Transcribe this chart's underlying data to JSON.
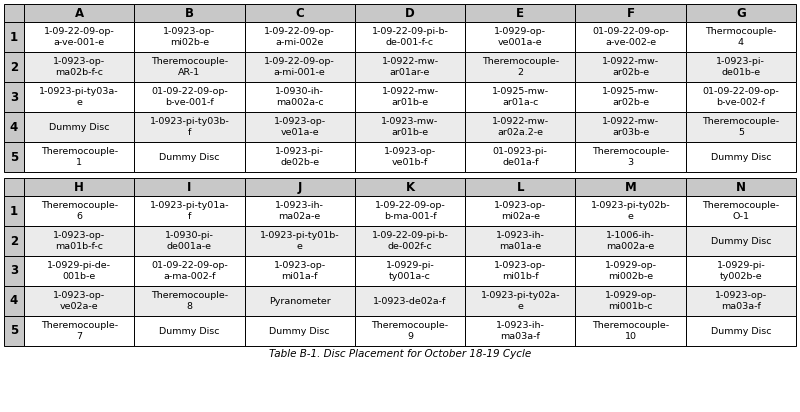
{
  "title": "Table B-1. Disc Placement for October 18-19 Cycle",
  "table1_cols": [
    "",
    "A",
    "B",
    "C",
    "D",
    "E",
    "F",
    "G"
  ],
  "table1_data": [
    [
      "1",
      "1-09-22-09-op-\na-ve-001-e",
      "1-0923-op-\nmi02b-e",
      "1-09-22-09-op-\na-mi-002e",
      "1-09-22-09-pi-b-\nde-001-f-c",
      "1-0929-op-\nve001a-e",
      "01-09-22-09-op-\na-ve-002-e",
      "Thermocouple-\n4"
    ],
    [
      "2",
      "1-0923-op-\nma02b-f-c",
      "Theremocouple-\nAR-1",
      "1-09-22-09-op-\na-mi-001-e",
      "1-0922-mw-\nar01ar-e",
      "Theremocouple-\n2",
      "1-0922-mw-\nar02b-e",
      "1-0923-pi-\nde01b-e"
    ],
    [
      "3",
      "1-0923-pi-ty03a-\ne",
      "01-09-22-09-op-\nb-ve-001-f",
      "1-0930-ih-\nma002a-c",
      "1-0922-mw-\nar01b-e",
      "1-0925-mw-\nar01a-c",
      "1-0925-mw-\nar02b-e",
      "01-09-22-09-op-\nb-ve-002-f"
    ],
    [
      "4",
      "Dummy Disc",
      "1-0923-pi-ty03b-\nf",
      "1-0923-op-\nve01a-e",
      "1-0923-mw-\nar01b-e",
      "1-0922-mw-\nar02a.2-e",
      "1-0922-mw-\nar03b-e",
      "Theremocouple-\n5"
    ],
    [
      "5",
      "Theremocouple-\n1",
      "Dummy Disc",
      "1-0923-pi-\nde02b-e",
      "1-0923-op-\nve01b-f",
      "01-0923-pi-\nde01a-f",
      "Theremocouple-\n3",
      "Dummy Disc"
    ]
  ],
  "table2_cols": [
    "",
    "H",
    "I",
    "J",
    "K",
    "L",
    "M",
    "N"
  ],
  "table2_data": [
    [
      "1",
      "Theremocouple-\n6",
      "1-0923-pi-ty01a-\nf",
      "1-0923-ih-\nma02a-e",
      "1-09-22-09-op-\nb-ma-001-f",
      "1-0923-op-\nmi02a-e",
      "1-0923-pi-ty02b-\ne",
      "Theremocouple-\nO-1"
    ],
    [
      "2",
      "1-0923-op-\nma01b-f-c",
      "1-0930-pi-\nde001a-e",
      "1-0923-pi-ty01b-\ne",
      "1-09-22-09-pi-b-\nde-002f-c",
      "1-0923-ih-\nma01a-e",
      "1-1006-ih-\nma002a-e",
      "Dummy Disc"
    ],
    [
      "3",
      "1-0929-pi-de-\n001b-e",
      "01-09-22-09-op-\na-ma-002-f",
      "1-0923-op-\nmi01a-f",
      "1-0929-pi-\nty001a-c",
      "1-0923-op-\nmi01b-f",
      "1-0929-op-\nmi002b-e",
      "1-0929-pi-\nty002b-e"
    ],
    [
      "4",
      "1-0923-op-\nve02a-e",
      "Theremocouple-\n8",
      "Pyranometer",
      "1-0923-de02a-f",
      "1-0923-pi-ty02a-\ne",
      "1-0929-op-\nmi001b-c",
      "1-0923-op-\nma03a-f"
    ],
    [
      "5",
      "Theremocouple-\n7",
      "Dummy Disc",
      "Dummy Disc",
      "Theremocouple-\n9",
      "1-0923-ih-\nma03a-f",
      "Theremocouple-\n10",
      "Dummy Disc"
    ]
  ],
  "header_bg": "#c8c8c8",
  "cell_bg_white": "#ffffff",
  "cell_bg_gray": "#ebebeb",
  "border_color": "#000000",
  "text_color": "#000000",
  "header_fontsize": 8.5,
  "cell_fontsize": 6.8,
  "row_num_fontsize": 8.5
}
